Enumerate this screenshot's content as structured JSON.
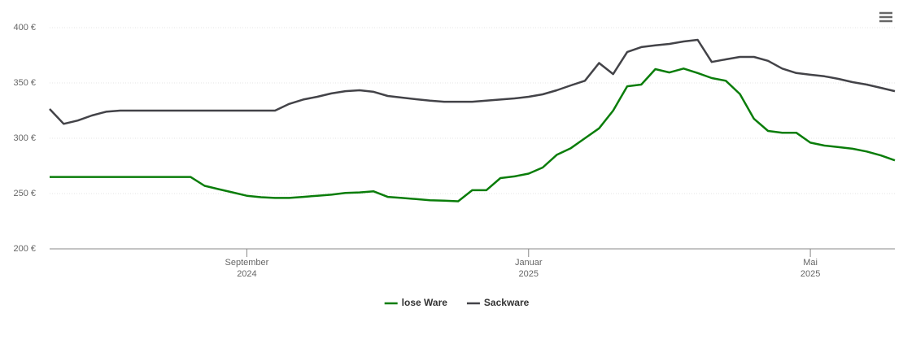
{
  "chart_data": {
    "type": "line",
    "categories": [
      null,
      null,
      null,
      null,
      null,
      null,
      null,
      null,
      null,
      null,
      null,
      null,
      null,
      null,
      "September\n2024",
      null,
      null,
      null,
      null,
      null,
      null,
      null,
      null,
      null,
      null,
      null,
      null,
      null,
      null,
      null,
      null,
      null,
      null,
      null,
      "Januar\n2025",
      null,
      null,
      null,
      null,
      null,
      null,
      null,
      null,
      null,
      null,
      null,
      null,
      null,
      null,
      null,
      null,
      null,
      null,
      null,
      "Mai\n2025",
      null,
      null,
      null,
      null,
      null,
      null
    ],
    "series": [
      {
        "name": "lose Ware",
        "color": "#0a7d0a",
        "values": [
          265,
          265,
          265,
          265,
          265,
          265,
          265,
          265,
          265,
          265,
          265,
          257,
          254,
          251,
          248,
          246.7,
          246,
          246,
          247,
          248,
          249,
          250.5,
          251,
          252,
          247,
          246,
          245,
          244,
          243.5,
          243,
          253,
          253,
          264,
          265.5,
          268,
          273.5,
          285,
          291,
          300,
          309,
          325,
          347,
          348.5,
          362.5,
          359.5,
          363,
          359,
          354.4,
          352,
          340,
          317.6,
          306.6,
          305,
          305,
          296,
          293.4,
          292,
          290.5,
          288,
          284.5,
          280
        ]
      },
      {
        "name": "Sackware",
        "color": "#434348",
        "values": [
          326.5,
          313,
          316,
          320.6,
          324,
          325,
          325,
          325,
          325,
          325,
          325,
          325,
          325,
          325,
          325,
          325,
          325,
          331,
          335,
          337.5,
          340.5,
          342.6,
          343.4,
          342,
          338.2,
          336.8,
          335.3,
          334,
          333,
          333,
          333,
          334,
          335,
          336,
          337.5,
          339.7,
          343.4,
          347.8,
          352,
          368,
          358,
          378,
          382.4,
          384,
          385.3,
          387.5,
          389,
          369,
          371.3,
          373.5,
          373.5,
          370,
          363,
          359,
          357.4,
          356,
          353.7,
          350.7,
          348.5,
          345.6,
          342.6
        ]
      }
    ],
    "ylim": [
      200,
      400
    ],
    "yticks": [
      {
        "value": 200,
        "label": "200 €"
      },
      {
        "value": 250,
        "label": "250 €"
      },
      {
        "value": 300,
        "label": "300 €"
      },
      {
        "value": 350,
        "label": "350 €"
      },
      {
        "value": 400,
        "label": "400 €"
      }
    ],
    "grid": true,
    "legend": "bottom"
  }
}
